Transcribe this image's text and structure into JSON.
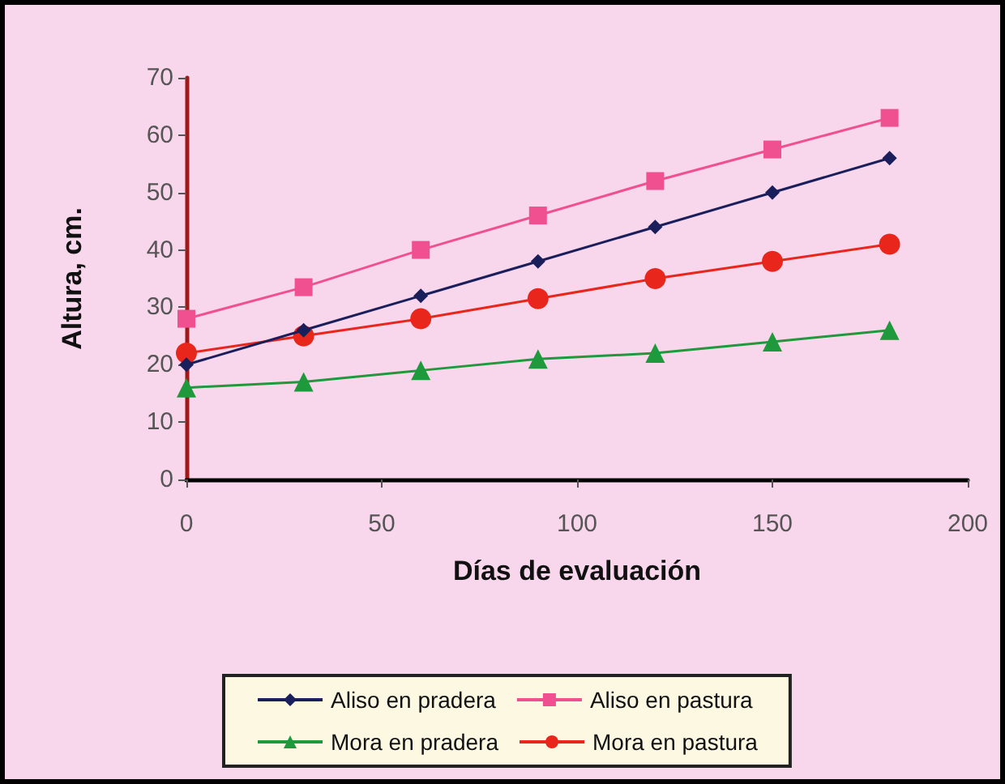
{
  "chart_data": {
    "type": "line",
    "xlabel": "Días de evaluación",
    "ylabel": "Altura, cm.",
    "x": [
      0,
      30,
      60,
      90,
      120,
      150,
      180
    ],
    "series": [
      {
        "name": "Aliso en pradera",
        "color": "#1a1f5c",
        "marker": "diamond",
        "values": [
          20,
          26,
          32,
          38,
          44,
          50,
          56
        ]
      },
      {
        "name": "Aliso en pastura",
        "color": "#f0508f",
        "marker": "square",
        "values": [
          28,
          33.5,
          40,
          46,
          52,
          57.5,
          63
        ]
      },
      {
        "name": "Mora en pradera",
        "color": "#1e9a3c",
        "marker": "triangle",
        "values": [
          16,
          17,
          19,
          21,
          22,
          24,
          26
        ]
      },
      {
        "name": "Mora en pastura",
        "color": "#e8261c",
        "marker": "circle",
        "values": [
          22,
          25,
          28,
          31.5,
          35,
          38,
          41
        ]
      }
    ],
    "xlim": [
      0,
      200
    ],
    "xticks": [
      0,
      50,
      100,
      150,
      200
    ],
    "ylim": [
      0,
      70
    ],
    "yticks": [
      0,
      10,
      20,
      30,
      40,
      50,
      60,
      70
    ],
    "grid": false,
    "legend": "bottom",
    "line_style": "solid"
  }
}
